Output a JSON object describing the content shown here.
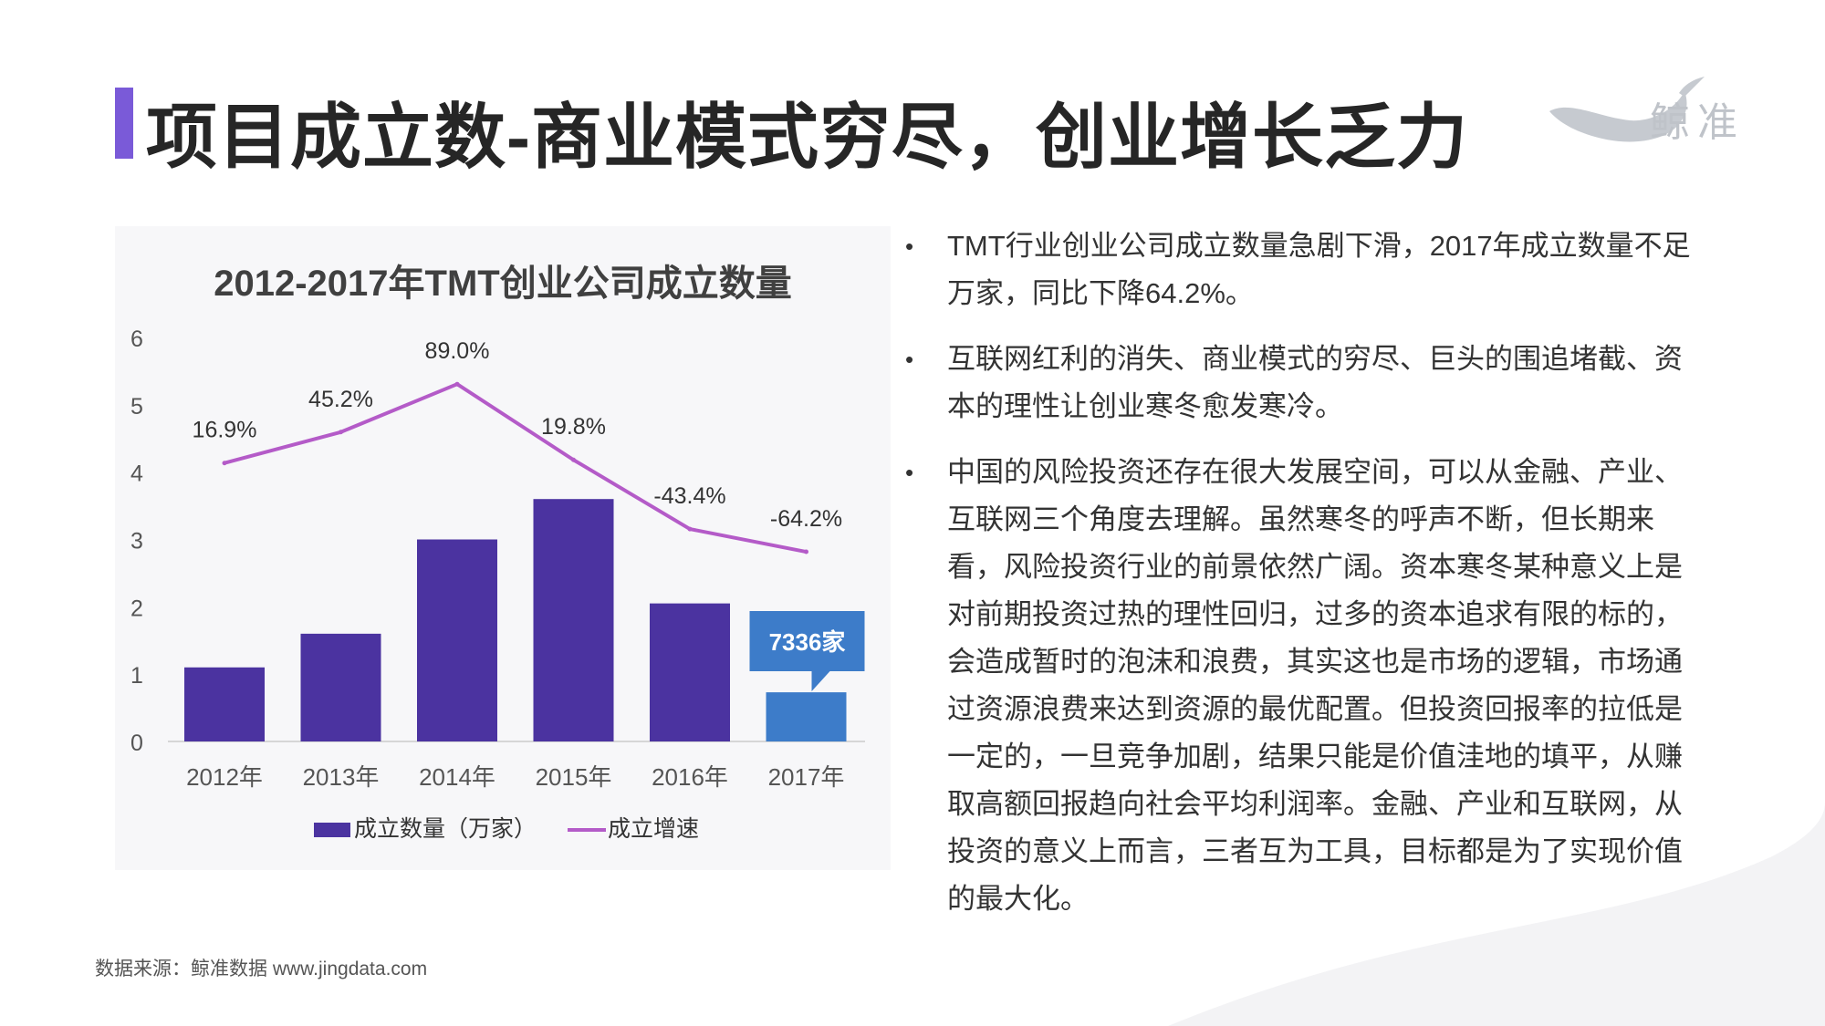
{
  "title": "项目成立数-商业模式穷尽，创业增长乏力",
  "logo": {
    "text": "鲸准",
    "icon": "whale-icon"
  },
  "colors": {
    "accent": "#7a5ad8",
    "bar": "#4b33a0",
    "bar_highlight": "#3d7cc9",
    "line": "#b45bc8",
    "callout": "#3d7cc9"
  },
  "chart_data": {
    "type": "bar",
    "title": "2012-2017年TMT创业公司成立数量",
    "categories": [
      "2012年",
      "2013年",
      "2014年",
      "2015年",
      "2016年",
      "2017年"
    ],
    "series": [
      {
        "name": "成立数量（万家）",
        "type": "bar",
        "values": [
          1.1,
          1.6,
          3.0,
          3.6,
          2.05,
          0.73
        ]
      },
      {
        "name": "成立增速",
        "type": "line",
        "values": [
          16.9,
          45.2,
          89.0,
          19.8,
          -43.4,
          -64.2
        ],
        "labels": [
          "16.9%",
          "45.2%",
          "89.0%",
          "19.8%",
          "-43.4%",
          "-64.2%"
        ]
      }
    ],
    "ylim": [
      0,
      6
    ],
    "yticks": [
      "0",
      "1",
      "2",
      "3",
      "4",
      "5",
      "6"
    ],
    "annotation": "7336家",
    "legend": "bottom",
    "grid": false
  },
  "bullets": [
    "TMT行业创业公司成立数量急剧下滑，2017年成立数量不足万家，同比下降64.2%。",
    "互联网红利的消失、商业模式的穷尽、巨头的围追堵截、资本的理性让创业寒冬愈发寒冷。",
    "中国的风险投资还存在很大发展空间，可以从金融、产业、互联网三个角度去理解。虽然寒冬的呼声不断，但长期来看，风险投资行业的前景依然广阔。资本寒冬某种意义上是对前期投资过热的理性回归，过多的资本追求有限的标的，会造成暂时的泡沫和浪费，其实这也是市场的逻辑，市场通过资源浪费来达到资源的最优配置。但投资回报率的拉低是一定的，一旦竞争加剧，结果只能是价值洼地的填平，从赚取高额回报趋向社会平均利润率。金融、产业和互联网，从投资的意义上而言，三者互为工具，目标都是为了实现价值的最大化。"
  ],
  "source": "数据来源：鲸准数据 www.jingdata.com"
}
